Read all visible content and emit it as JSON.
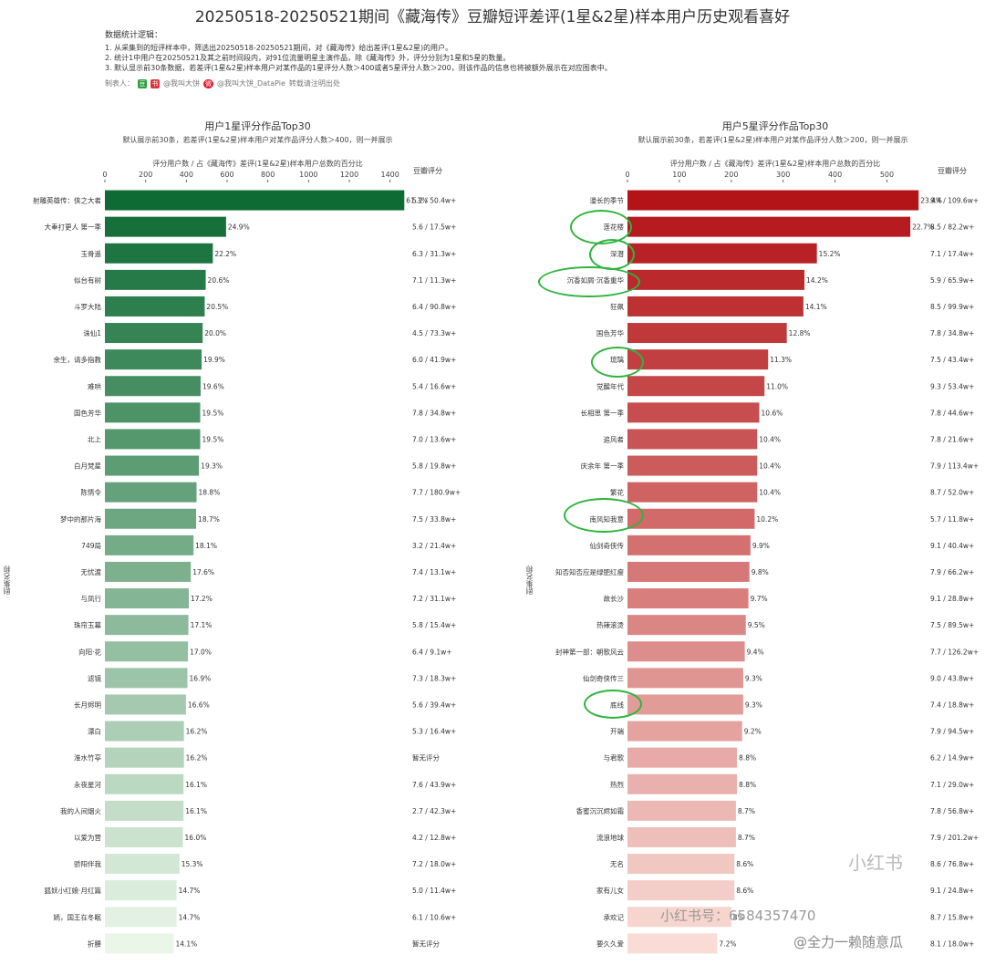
{
  "page": {
    "title": "20250518-20250521期间《藏海传》豆瓣短评差评(1星&2星)样本用户历史观看喜好",
    "desc_title": "数据统计逻辑：",
    "desc_lines": [
      "1. 从采集到的短评样本中，筛选出20250518-20250521期间，对《藏海传》给出差评(1星&2星)的用户。",
      "2. 统计1中用户在20250521及其之前时间段内，对91位流量明星主演作品，除《藏海传》外，评分分别为1星和5星的数量。",
      "3. 默认显示前30条数据，若差评(1星&2星)样本用户对某作品的1星评分人数＞400或者5星评分人数＞200，则该作品的信息也将被额外展示在对应图表中。"
    ],
    "maker_label": "制表人：",
    "maker_handle1": "@我叫大饼",
    "maker_handle2": "@我叫大饼_DataPie",
    "maker_note": "转载请注明出处",
    "watermark_text": "小红书号：6584357470",
    "watermark_text2": "@全力一赖随意瓜",
    "watermark_logo": "小红书"
  },
  "chart_data": [
    {
      "type": "bar",
      "orientation": "horizontal",
      "title": "用户1星评分作品Top30",
      "subtitle": "默认展示前30条，若差评(1星&2星)样本用户对某作品评分人数＞400，则一并展示",
      "xlabel": "评分用户数 / 占《藏海传》差评(1星&2星)样本用户总数的百分比",
      "ylabel": "剧集名称",
      "score_header": "豆瓣评分",
      "xlim": [
        0,
        1500
      ],
      "xticks": [
        0,
        200,
        400,
        600,
        800,
        1000,
        1200,
        1400
      ],
      "color_scale": [
        "#0f6b34",
        "#eaf6e8"
      ],
      "categories": [
        "射雕英雄传：侠之大者",
        "大奉打更人 第一季",
        "玉骨遥",
        "似台有树",
        "斗罗大陆",
        "诛仙1",
        "余生，请多指教",
        "难哄",
        "国色芳华",
        "北上",
        "白月梵星",
        "陈情令",
        "梦中的那片海",
        "749局",
        "无忧渡",
        "与凤行",
        "珠帘玉幕",
        "向阳·花",
        "滤镜",
        "长月烬明",
        "漂白",
        "淮水竹亭",
        "永夜星河",
        "我的人间烟火",
        "以爱为营",
        "骄阳伴我",
        "狐妖小红娘·月红篇",
        "嫣，国王在冬眠",
        "折腰"
      ],
      "values": [
        1470,
        595,
        530,
        495,
        490,
        480,
        475,
        470,
        468,
        468,
        462,
        450,
        448,
        435,
        422,
        412,
        410,
        408,
        405,
        398,
        388,
        388,
        386,
        386,
        383,
        366,
        352,
        352,
        338
      ],
      "labels": [
        "61.3%",
        "24.9%",
        "22.2%",
        "20.6%",
        "20.5%",
        "20.0%",
        "19.9%",
        "19.6%",
        "19.5%",
        "19.5%",
        "19.3%",
        "18.8%",
        "18.7%",
        "18.1%",
        "17.6%",
        "17.2%",
        "17.1%",
        "17.0%",
        "16.9%",
        "16.6%",
        "16.2%",
        "16.2%",
        "16.1%",
        "16.1%",
        "16.0%",
        "15.3%",
        "14.7%",
        "14.7%",
        "14.1%"
      ],
      "scores": [
        "5.2 / 50.4w+",
        "5.6 / 17.5w+",
        "6.3 / 31.3w+",
        "7.1 / 11.3w+",
        "6.4 / 90.8w+",
        "4.5 / 73.3w+",
        "6.0 / 41.9w+",
        "5.4 / 16.6w+",
        "7.8 / 34.8w+",
        "7.0 / 13.6w+",
        "5.8 / 19.8w+",
        "7.7 / 180.9w+",
        "7.5 / 33.8w+",
        "3.2 / 21.4w+",
        "7.4 / 13.1w+",
        "7.2 / 31.1w+",
        "5.8 / 15.4w+",
        "6.4 / 9.1w+",
        "7.3 / 18.3w+",
        "5.6 / 39.4w+",
        "5.3 / 16.4w+",
        "暂无评分",
        "7.6 / 43.9w+",
        "2.7 / 42.3w+",
        "4.2 / 12.8w+",
        "7.2 / 18.0w+",
        "5.0 / 11.4w+",
        "6.1 / 10.6w+",
        "暂无评分"
      ]
    },
    {
      "type": "bar",
      "orientation": "horizontal",
      "title": "用户5星评分作品Top30",
      "subtitle": "默认展示前30条，若差评(1星&2星)样本用户对某作品评分人数＞200，则一并展示",
      "xlabel": "评分用户数 / 占《藏海传》差评(1星&2星)样本用户总数的百分比",
      "ylabel": "剧集名称",
      "score_header": "豆瓣评分",
      "xlim": [
        0,
        580
      ],
      "xticks": [
        0,
        100,
        200,
        300,
        400,
        500
      ],
      "color_scale": [
        "#b31418",
        "#f8dcd5"
      ],
      "categories": [
        "漫长的季节",
        "莲花楼",
        "深潜",
        "沉香如屑·沉香重华",
        "狂飙",
        "国色芳华",
        "琉璃",
        "觉醒年代",
        "长相思 第一季",
        "追风者",
        "庆余年 第一季",
        "繁花",
        "南风知我意",
        "仙剑奇侠传",
        "知否知否应是绿肥红瘦",
        "故长沙",
        "热辣滚烫",
        "封神第一部：朝歌风云",
        "仙剑奇侠传三",
        "底线",
        "开端",
        "与君歌",
        "热烈",
        "香蜜沉沉烬如霜",
        "流浪地球",
        "无名",
        "家有儿女",
        "承欢记",
        "要久久爱"
      ],
      "values": [
        561,
        545,
        365,
        341,
        339,
        307,
        271,
        264,
        254,
        250,
        250,
        250,
        245,
        237,
        235,
        233,
        228,
        226,
        223,
        223,
        221,
        211,
        211,
        209,
        209,
        206,
        206,
        200,
        173
      ],
      "labels": [
        "23.4%",
        "22.7%",
        "15.2%",
        "14.2%",
        "14.1%",
        "12.8%",
        "11.3%",
        "11.0%",
        "10.6%",
        "10.4%",
        "10.4%",
        "10.4%",
        "10.2%",
        "9.9%",
        "9.8%",
        "9.7%",
        "9.5%",
        "9.4%",
        "9.3%",
        "9.3%",
        "9.2%",
        "8.8%",
        "8.8%",
        "8.7%",
        "8.7%",
        "8.6%",
        "8.6%",
        "8%",
        "7.2%"
      ],
      "scores": [
        "9.4 / 109.6w+",
        "8.5 / 82.2w+",
        "7.1 / 17.4w+",
        "5.9 / 65.9w+",
        "8.5 / 99.9w+",
        "7.8 / 34.8w+",
        "7.5 / 43.4w+",
        "9.3 / 53.4w+",
        "7.8 / 44.6w+",
        "7.8 / 21.6w+",
        "7.9 / 113.4w+",
        "8.7 / 52.0w+",
        "5.7 / 11.8w+",
        "9.1 / 40.4w+",
        "7.9 / 66.2w+",
        "9.1 / 28.8w+",
        "7.5 / 89.5w+",
        "7.7 / 126.2w+",
        "9.0 / 43.8w+",
        "7.4 / 18.8w+",
        "7.9 / 94.5w+",
        "6.2 / 14.9w+",
        "7.1 / 29.0w+",
        "7.8 / 56.8w+",
        "7.9 / 201.2w+",
        "8.6 / 76.8w+",
        "9.1 / 24.8w+",
        "8.7 / 15.8w+",
        "8.1 / 18.0w+"
      ]
    }
  ]
}
